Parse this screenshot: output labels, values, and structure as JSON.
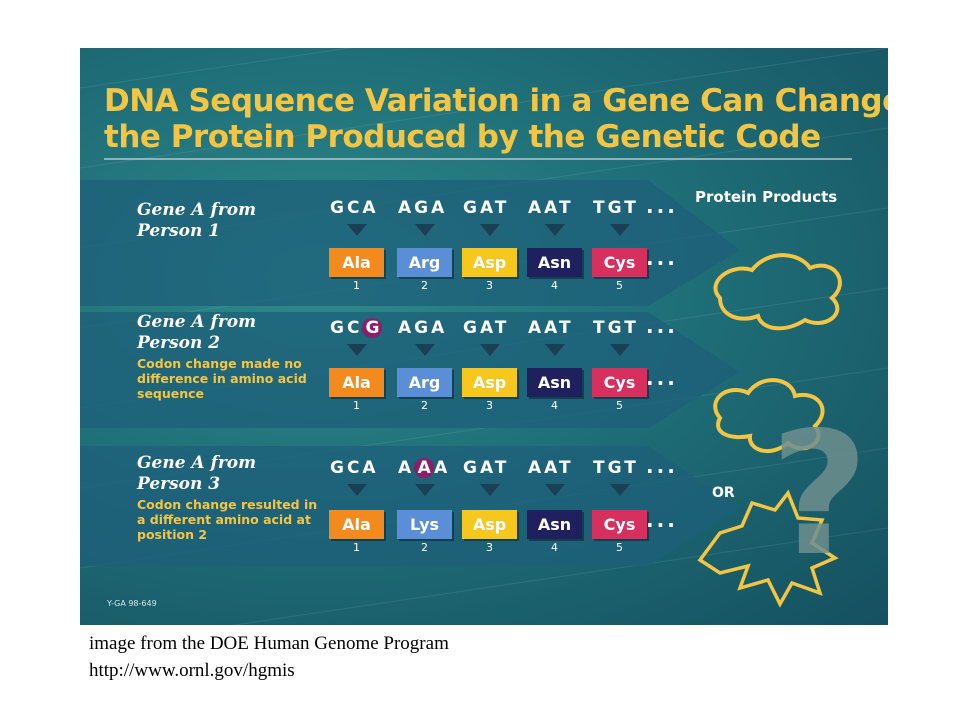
{
  "title": {
    "line1": "DNA Sequence Variation in a Gene Can Change",
    "line2": "the Protein Produced by the Genetic Code"
  },
  "products_label": "Protein Products",
  "or_label": "OR",
  "question_mark": "?",
  "ellipsis": "...",
  "figure_code": "Y-GA 98-649",
  "colors": {
    "Ala": "#f28a1e",
    "Arg": "#5a8fd8",
    "Asp": "#f6c71d",
    "Asn": "#20205f",
    "Cys": "#d7305f",
    "Lys": "#5a8fd8",
    "accent": "#f4c542",
    "mutation": "#8b1d6b"
  },
  "rows": [
    {
      "label1": "Gene A from",
      "label2": "Person 1",
      "note": [],
      "codons": [
        {
          "pre": "GCA",
          "mut": "",
          "post": ""
        },
        {
          "pre": "AGA",
          "mut": "",
          "post": ""
        },
        {
          "pre": "GAT",
          "mut": "",
          "post": ""
        },
        {
          "pre": "AAT",
          "mut": "",
          "post": ""
        },
        {
          "pre": "TGT",
          "mut": "",
          "post": ""
        }
      ],
      "amino_acids": [
        "Ala",
        "Arg",
        "Asp",
        "Asn",
        "Cys"
      ],
      "positions": [
        "1",
        "2",
        "3",
        "4",
        "5"
      ]
    },
    {
      "label1": "Gene A from",
      "label2": "Person 2",
      "note": [
        "Codon change made no",
        "difference in amino acid",
        "sequence"
      ],
      "codons": [
        {
          "pre": "GC",
          "mut": "G",
          "post": ""
        },
        {
          "pre": "AGA",
          "mut": "",
          "post": ""
        },
        {
          "pre": "GAT",
          "mut": "",
          "post": ""
        },
        {
          "pre": "AAT",
          "mut": "",
          "post": ""
        },
        {
          "pre": "TGT",
          "mut": "",
          "post": ""
        }
      ],
      "amino_acids": [
        "Ala",
        "Arg",
        "Asp",
        "Asn",
        "Cys"
      ],
      "positions": [
        "1",
        "2",
        "3",
        "4",
        "5"
      ]
    },
    {
      "label1": "Gene A from",
      "label2": "Person 3",
      "note": [
        "Codon change resulted in",
        "a different amino acid at",
        "position 2"
      ],
      "codons": [
        {
          "pre": "GCA",
          "mut": "",
          "post": ""
        },
        {
          "pre": "A",
          "mut": "A",
          "post": "A"
        },
        {
          "pre": "GAT",
          "mut": "",
          "post": ""
        },
        {
          "pre": "AAT",
          "mut": "",
          "post": ""
        },
        {
          "pre": "TGT",
          "mut": "",
          "post": ""
        }
      ],
      "amino_acids": [
        "Ala",
        "Lys",
        "Asp",
        "Asn",
        "Cys"
      ],
      "positions": [
        "1",
        "2",
        "3",
        "4",
        "5"
      ]
    }
  ],
  "caption": {
    "line1": "image from the DOE Human Genome Program",
    "line2": "http://www.ornl.gov/hgmis"
  }
}
